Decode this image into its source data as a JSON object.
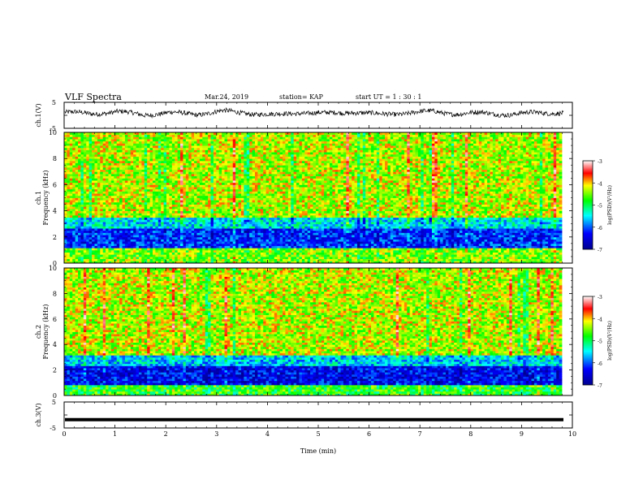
{
  "header": {
    "title": "VLF Spectra",
    "date": "Mar.24, 2019",
    "station": "station= KAP",
    "start": "start  UT  =   1 : 30 : 1"
  },
  "chart_data": [
    {
      "type": "line",
      "panel": "ch1-waveform",
      "ylabel": "ch.1(V)",
      "ylim": [
        -5,
        5
      ],
      "yticks": [
        "5",
        "-5"
      ],
      "xlim": [
        0,
        10
      ],
      "note": "noisy waveform around about 1 V, amplitude roughly ±1.5 V",
      "series": [
        {
          "values": [
            1.2,
            0.6,
            1.4,
            0.2,
            1.0,
            0.4,
            1.6,
            0.8,
            0.1,
            1.1,
            0.7,
            1.3,
            0.3,
            0.9,
            1.5,
            0.5,
            1.0,
            0.2,
            1.2,
            0.8
          ]
        }
      ]
    },
    {
      "type": "heatmap",
      "panel": "ch1-spectrogram",
      "ylabel_line1": "ch.1",
      "ylabel_line2": "Frequency  (kHz)",
      "ylim": [
        0,
        10
      ],
      "yticks": [
        "0",
        "2",
        "4",
        "6",
        "8",
        "10"
      ],
      "xlim": [
        0,
        10
      ],
      "colorbar": {
        "label": "log(PSD)(V²/Hz)",
        "range": [
          -7,
          -3
        ],
        "ticks": [
          "-3",
          "-4",
          "-5",
          "-6",
          "-7"
        ]
      },
      "description_levels": {
        "0-1.2kHz": -4.5,
        "1.2-2.6kHz": -6.2,
        "2.6-3.5kHz": -5.6,
        "3.5-10kHz": -4.3
      }
    },
    {
      "type": "heatmap",
      "panel": "ch2-spectrogram",
      "ylabel_line1": "ch.2",
      "ylabel_line2": "Frequency  (kHz)",
      "ylim": [
        0,
        10
      ],
      "yticks": [
        "0",
        "2",
        "4",
        "6",
        "8",
        "10"
      ],
      "xlim": [
        0,
        10
      ],
      "colorbar": {
        "label": "log(PSD)(V²/Hz)",
        "range": [
          -7,
          -3
        ],
        "ticks": [
          "-3",
          "-4",
          "-5",
          "-6",
          "-7"
        ]
      },
      "description_levels": {
        "0-0.8kHz": -4.8,
        "0.8-2.4kHz": -6.4,
        "2.4-3.2kHz": -5.7,
        "3.2-10kHz": -4.2
      }
    },
    {
      "type": "line",
      "panel": "ch3-waveform",
      "ylabel": "ch.3(V)",
      "ylim": [
        -5,
        5
      ],
      "yticks": [
        "5",
        "-5"
      ],
      "xlim": [
        0,
        10
      ],
      "xticks": [
        "0",
        "1",
        "2",
        "3",
        "4",
        "5",
        "6",
        "7",
        "8",
        "9",
        "10"
      ],
      "xlabel": "Time  (min)",
      "series": [
        {
          "values": [
            -1.8,
            -1.8
          ]
        }
      ]
    }
  ]
}
